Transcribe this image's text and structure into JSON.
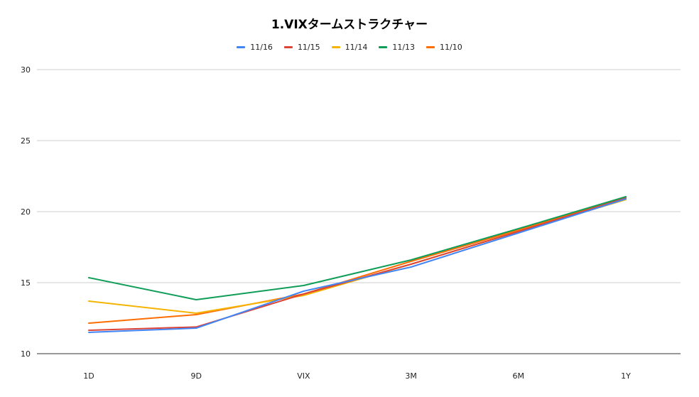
{
  "chart_data": {
    "type": "line",
    "title": "1.VIXタームストラクチャー",
    "xlabel": "",
    "ylabel": "",
    "categories": [
      "1D",
      "9D",
      "VIX",
      "3M",
      "6M",
      "1Y"
    ],
    "ylim": [
      10,
      30
    ],
    "yticks": [
      10,
      15,
      20,
      25,
      30
    ],
    "grid": true,
    "legend_position": "top",
    "series": [
      {
        "name": "11/16",
        "color": "#4285F4",
        "values": [
          11.5,
          11.8,
          14.4,
          16.1,
          18.5,
          20.9
        ]
      },
      {
        "name": "11/15",
        "color": "#DB4437",
        "values": [
          11.65,
          11.88,
          14.2,
          16.3,
          18.6,
          20.95
        ]
      },
      {
        "name": "11/14",
        "color": "#F4B400",
        "values": [
          13.7,
          12.85,
          14.1,
          16.3,
          18.6,
          20.85
        ]
      },
      {
        "name": "11/13",
        "color": "#0F9D58",
        "values": [
          15.35,
          13.8,
          14.8,
          16.6,
          18.8,
          21.05
        ]
      },
      {
        "name": "11/10",
        "color": "#FF6D01",
        "values": [
          12.15,
          12.75,
          14.2,
          16.5,
          18.7,
          21.0
        ]
      }
    ]
  }
}
